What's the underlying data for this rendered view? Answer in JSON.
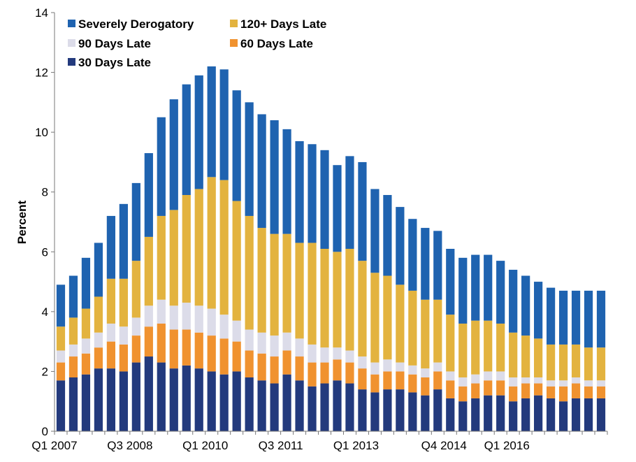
{
  "chart_data": {
    "type": "bar",
    "stacked": true,
    "ylabel": "Percent",
    "xlabel": "",
    "ylim": [
      0,
      14
    ],
    "yticks": [
      0,
      2,
      4,
      6,
      8,
      10,
      12,
      14
    ],
    "grid": false,
    "legend_position": "top-left",
    "categories": [
      "Q1 2007",
      "Q2 2007",
      "Q3 2007",
      "Q4 2007",
      "Q1 2008",
      "Q2 2008",
      "Q3 2008",
      "Q4 2008",
      "Q1 2009",
      "Q2 2009",
      "Q3 2009",
      "Q4 2009",
      "Q1 2010",
      "Q2 2010",
      "Q3 2010",
      "Q4 2010",
      "Q1 2011",
      "Q2 2011",
      "Q3 2011",
      "Q4 2011",
      "Q1 2012",
      "Q2 2012",
      "Q3 2012",
      "Q4 2012",
      "Q1 2013",
      "Q2 2013",
      "Q3 2013",
      "Q4 2013",
      "Q1 2014",
      "Q2 2014",
      "Q3 2014",
      "Q4 2014",
      "Q1 2015",
      "Q2 2015",
      "Q3 2015",
      "Q4 2015",
      "Q1 2016",
      "Q2 2016",
      "Q3 2016",
      "Q4 2016",
      "Q1 2017",
      "Q2 2017",
      "Q3 2017",
      "Q4 2017"
    ],
    "x_tick_labels": [
      {
        "index": 0,
        "label": "Q1 2007"
      },
      {
        "index": 6,
        "label": "Q3 2008"
      },
      {
        "index": 12,
        "label": "Q1 2010"
      },
      {
        "index": 18,
        "label": "Q3 2011"
      },
      {
        "index": 24,
        "label": "Q1 2013"
      },
      {
        "index": 31,
        "label": "Q4 2014"
      },
      {
        "index": 36,
        "label": "Q1 2016"
      }
    ],
    "legend_order": [
      0,
      1,
      2,
      3,
      4
    ],
    "series": [
      {
        "name": "Severely Derogatory",
        "color": "#1f63b0",
        "values": [
          1.4,
          1.4,
          1.7,
          1.8,
          2.1,
          2.5,
          2.6,
          2.8,
          3.3,
          3.7,
          3.7,
          3.8,
          3.7,
          3.7,
          3.7,
          3.8,
          3.8,
          3.8,
          3.5,
          3.4,
          3.3,
          3.3,
          2.9,
          3.1,
          3.3,
          2.8,
          2.7,
          2.6,
          2.4,
          2.4,
          2.3,
          2.2,
          2.2,
          2.2,
          2.2,
          2.1,
          2.1,
          2.0,
          1.9,
          1.9,
          1.8,
          1.8,
          1.9,
          1.9
        ]
      },
      {
        "name": "120+ Days Late",
        "color": "#e3b33f",
        "values": [
          0.8,
          0.9,
          1.0,
          1.2,
          1.5,
          1.6,
          1.9,
          2.3,
          2.8,
          3.2,
          3.6,
          3.9,
          4.4,
          4.5,
          4.0,
          3.8,
          3.5,
          3.4,
          3.3,
          3.2,
          3.4,
          3.3,
          3.2,
          3.4,
          3.2,
          3.0,
          2.8,
          2.6,
          2.5,
          2.3,
          2.1,
          1.9,
          1.8,
          1.8,
          1.7,
          1.6,
          1.5,
          1.4,
          1.3,
          1.2,
          1.2,
          1.1,
          1.1,
          1.1
        ]
      },
      {
        "name": "90 Days Late",
        "color": "#dcdce9",
        "values": [
          0.4,
          0.4,
          0.5,
          0.5,
          0.6,
          0.6,
          0.6,
          0.7,
          0.8,
          0.8,
          0.9,
          0.9,
          0.9,
          0.8,
          0.7,
          0.7,
          0.7,
          0.7,
          0.6,
          0.6,
          0.6,
          0.5,
          0.4,
          0.4,
          0.4,
          0.4,
          0.4,
          0.3,
          0.3,
          0.3,
          0.3,
          0.3,
          0.3,
          0.3,
          0.3,
          0.3,
          0.3,
          0.2,
          0.2,
          0.2,
          0.2,
          0.2,
          0.2,
          0.2
        ]
      },
      {
        "name": "60 Days Late",
        "color": "#f0922f",
        "values": [
          0.6,
          0.7,
          0.7,
          0.7,
          0.9,
          0.9,
          0.9,
          1.0,
          1.3,
          1.3,
          1.2,
          1.2,
          1.2,
          1.2,
          1.0,
          0.9,
          0.9,
          0.9,
          0.8,
          0.8,
          0.8,
          0.7,
          0.7,
          0.7,
          0.7,
          0.6,
          0.6,
          0.6,
          0.6,
          0.6,
          0.6,
          0.6,
          0.5,
          0.5,
          0.5,
          0.5,
          0.5,
          0.5,
          0.4,
          0.4,
          0.5,
          0.5,
          0.4,
          0.4
        ]
      },
      {
        "name": "30 Days Late",
        "color": "#233a7d",
        "values": [
          1.7,
          1.8,
          1.9,
          2.1,
          2.1,
          2.0,
          2.3,
          2.5,
          2.3,
          2.1,
          2.2,
          2.1,
          2.0,
          1.9,
          2.0,
          1.8,
          1.7,
          1.6,
          1.9,
          1.7,
          1.5,
          1.6,
          1.7,
          1.6,
          1.4,
          1.3,
          1.4,
          1.4,
          1.3,
          1.2,
          1.4,
          1.1,
          1.0,
          1.1,
          1.2,
          1.2,
          1.0,
          1.1,
          1.2,
          1.1,
          1.0,
          1.1,
          1.1,
          1.1
        ]
      }
    ]
  }
}
